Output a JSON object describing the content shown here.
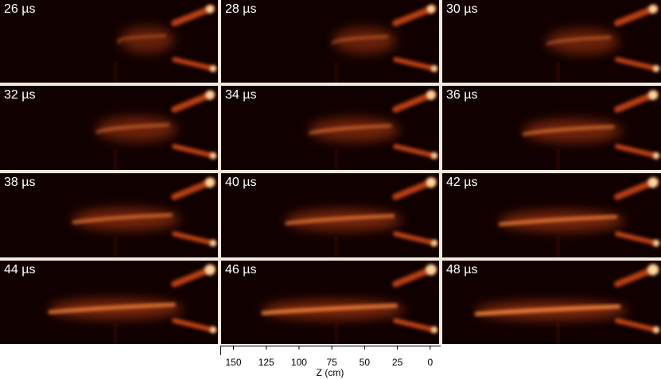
{
  "panels": [
    {
      "label": "26 µs",
      "stage": 0
    },
    {
      "label": "28 µs",
      "stage": 1
    },
    {
      "label": "30 µs",
      "stage": 2
    },
    {
      "label": "32 µs",
      "stage": 3
    },
    {
      "label": "34 µs",
      "stage": 4
    },
    {
      "label": "36 µs",
      "stage": 5
    },
    {
      "label": "38 µs",
      "stage": 6
    },
    {
      "label": "40 µs",
      "stage": 7
    },
    {
      "label": "42 µs",
      "stage": 8
    },
    {
      "label": "44 µs",
      "stage": 9
    },
    {
      "label": "46 µs",
      "stage": 10
    },
    {
      "label": "48 µs",
      "stage": 11
    }
  ],
  "axis": {
    "title": "Z (cm)",
    "ticks": [
      150,
      125,
      100,
      75,
      50,
      25,
      0
    ],
    "range": [
      160,
      -8
    ]
  },
  "colors": {
    "background": "#110000",
    "glow": "#ff5a1e",
    "core": "#ffd9a0",
    "separator": "#f7e8dc"
  }
}
